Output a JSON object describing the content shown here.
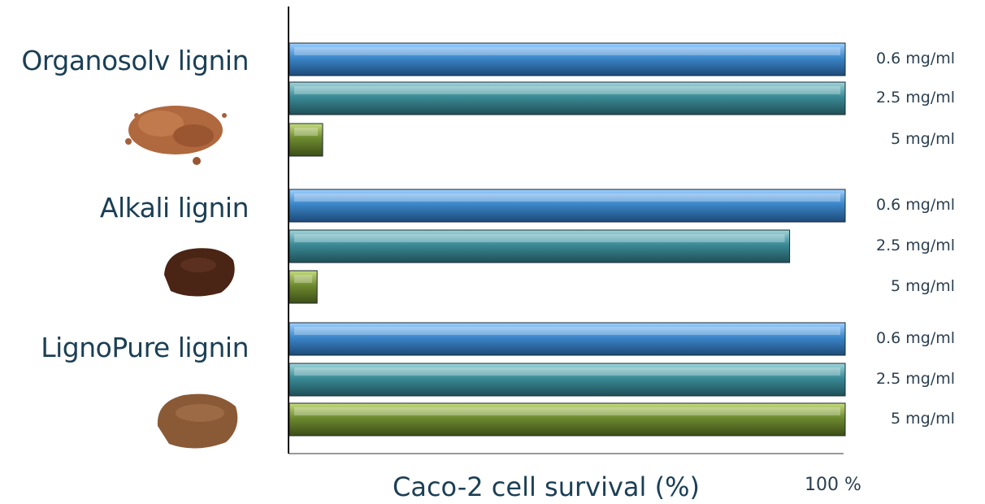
{
  "chart_data": {
    "type": "bar",
    "orientation": "horizontal",
    "xlabel": "Caco-2 cell survival (%)",
    "x_max_label": "100 %",
    "xlim": [
      0,
      100
    ],
    "groups": [
      {
        "name": "Organosolv lignin",
        "bars": [
          {
            "dose": "0.6 mg/ml",
            "value": 100,
            "color": "#3b86c9"
          },
          {
            "dose": "2.5 mg/ml",
            "value": 100,
            "color": "#3a8a95"
          },
          {
            "dose": "5 mg/ml",
            "value": 6,
            "color": "#6e8a2f"
          }
        ]
      },
      {
        "name": "Alkali lignin",
        "bars": [
          {
            "dose": "0.6 mg/ml",
            "value": 100,
            "color": "#3b86c9"
          },
          {
            "dose": "2.5 mg/ml",
            "value": 90,
            "color": "#3a8a95"
          },
          {
            "dose": "5 mg/ml",
            "value": 5,
            "color": "#6e8a2f"
          }
        ]
      },
      {
        "name": "LignoPure lignin",
        "bars": [
          {
            "dose": "0.6 mg/ml",
            "value": 100,
            "color": "#3b86c9"
          },
          {
            "dose": "2.5 mg/ml",
            "value": 100,
            "color": "#3a8a95"
          },
          {
            "dose": "5 mg/ml",
            "value": 100,
            "color": "#6e8a2f"
          }
        ]
      }
    ],
    "grid": false,
    "legend": "none"
  },
  "powder_colors": [
    "#b0683e",
    "#4a2414",
    "#8a5a36"
  ]
}
